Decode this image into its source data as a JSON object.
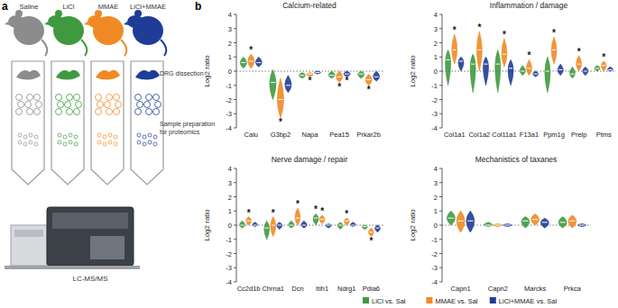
{
  "figure": {
    "panel_labels": [
      "a",
      "b"
    ]
  },
  "diagram": {
    "groups": [
      {
        "label": "Saline",
        "color": "#8c8c8c"
      },
      {
        "label": "LiCl",
        "color": "#3f9a3f"
      },
      {
        "label": "MMAE",
        "color": "#f08a24"
      },
      {
        "label": "LiCl+MMAE",
        "color": "#1f3d96"
      }
    ],
    "dissection": "DRG dissection",
    "sample_prep": [
      "Sample preparation",
      "for proteomics"
    ],
    "instrument": "LC-MS/MS"
  },
  "chart_data": [
    {
      "type": "violin",
      "title": "Calcium-related",
      "y_label": "Log2 ratio",
      "categories": [
        "Calu",
        "G3bp2",
        "Napa",
        "Pea15",
        "Prkar2b"
      ],
      "ylim": [
        -4,
        4
      ],
      "yticks": [
        -4,
        -3,
        -2,
        -1,
        0,
        1,
        2,
        3,
        4
      ],
      "legend": "bottom",
      "series": [
        {
          "name": "LiCl vs. Sal",
          "color": "#3f9a3f",
          "values": [
            0.6,
            -0.8,
            -0.3,
            -0.3,
            -0.2
          ],
          "min": [
            0.2,
            -2,
            -0.5,
            -0.5,
            -0.5
          ],
          "max": [
            1,
            0.1,
            -0.1,
            0,
            0
          ],
          "significance": [
            null,
            null,
            null,
            null,
            null
          ]
        },
        {
          "name": "MMAE vs. Sal",
          "color": "#f08a24",
          "values": [
            0.7,
            -2,
            -0.2,
            -0.4,
            -0.6
          ],
          "min": [
            0.2,
            -3.3,
            -0.4,
            -0.8,
            -1
          ],
          "max": [
            1.2,
            -0.5,
            -0.1,
            0,
            -0.2
          ],
          "significance": [
            "*",
            "*",
            "*",
            "*",
            "*"
          ]
        },
        {
          "name": "LiCl+MMAE vs. Sal",
          "color": "#1f3d96",
          "values": [
            0.6,
            -1,
            -0.1,
            -0.2,
            -0.4
          ],
          "min": [
            0.3,
            -1.5,
            -0.2,
            -0.4,
            -0.7
          ],
          "max": [
            1,
            -0.3,
            0,
            0,
            0
          ],
          "significance": [
            null,
            null,
            null,
            "*",
            null
          ]
        }
      ]
    },
    {
      "type": "violin",
      "title": "Inflammation / damage",
      "y_label": "Log2 ratio",
      "categories": [
        "Col1a1",
        "Col1a2",
        "Col11a1",
        "F13a1",
        "Ppm1g",
        "Prelp",
        "Ptms"
      ],
      "ylim": [
        -4,
        4
      ],
      "yticks": [
        -4,
        -3,
        -2,
        -1,
        0,
        1,
        2,
        3,
        4
      ],
      "series": [
        {
          "name": "LiCl vs. Sal",
          "color": "#3f9a3f",
          "values": [
            0.8,
            0.5,
            0.5,
            0,
            0,
            -0.2,
            0.2
          ],
          "min": [
            -1,
            -1.5,
            -1.5,
            -0.3,
            -1.5,
            -0.5,
            0
          ],
          "max": [
            1.5,
            1.2,
            1.5,
            0.4,
            1,
            0.3,
            0.4
          ],
          "significance": [
            null,
            null,
            null,
            null,
            null,
            null,
            null
          ]
        },
        {
          "name": "MMAE vs. Sal",
          "color": "#f08a24",
          "values": [
            1.5,
            1.5,
            1.2,
            0.2,
            1.5,
            0.5,
            0.4
          ],
          "min": [
            0.5,
            0,
            0.3,
            -0.3,
            0.5,
            0,
            0
          ],
          "max": [
            2.6,
            2.8,
            2.3,
            0.8,
            2.4,
            1.1,
            0.7
          ],
          "significance": [
            "*",
            "*",
            "*",
            "*",
            "*",
            "*",
            "*"
          ]
        },
        {
          "name": "LiCl+MMAE vs. Sal",
          "color": "#1f3d96",
          "values": [
            0.7,
            0.5,
            0.2,
            -0.2,
            0.1,
            0,
            0.1
          ],
          "min": [
            0,
            -1,
            -1,
            -0.4,
            -0.3,
            -0.3,
            0
          ],
          "max": [
            1,
            1,
            0.8,
            0,
            0.5,
            0.3,
            0.3
          ],
          "significance": [
            null,
            null,
            null,
            null,
            null,
            null,
            null
          ]
        }
      ]
    },
    {
      "type": "violin",
      "title": "Nerve damage / repair",
      "y_label": "Log2 ratio",
      "categories": [
        "Cc2d1b",
        "Chrna1",
        "Dcn",
        "Itih1",
        "Ndrg1",
        "Pdia6"
      ],
      "ylim": [
        -4,
        4
      ],
      "yticks": [
        -4,
        -3,
        -2,
        -1,
        0,
        1,
        2,
        3,
        4
      ],
      "series": [
        {
          "name": "LiCl vs. Sal",
          "color": "#3f9a3f",
          "values": [
            0,
            -0.2,
            0,
            0.5,
            0,
            -0.1
          ],
          "min": [
            -0.2,
            -1,
            -0.2,
            0,
            -0.3,
            -0.3
          ],
          "max": [
            0.3,
            0.3,
            0.3,
            0.8,
            0.2,
            0
          ],
          "significance": [
            null,
            null,
            null,
            "*",
            null,
            null
          ]
        },
        {
          "name": "MMAE vs. Sal",
          "color": "#f08a24",
          "values": [
            0.3,
            0,
            0.5,
            0.4,
            0.3,
            -0.5
          ],
          "min": [
            0,
            -0.8,
            0,
            0.1,
            0,
            -0.8
          ],
          "max": [
            0.6,
            0.6,
            1.2,
            0.7,
            0.5,
            -0.2
          ],
          "significance": [
            "*",
            "*",
            "*",
            "*",
            "*",
            "*"
          ]
        },
        {
          "name": "LiCl+MMAE vs. Sal",
          "color": "#1f3d96",
          "values": [
            0,
            0,
            0,
            0,
            0,
            -0.2
          ],
          "min": [
            -0.1,
            -0.3,
            -0.2,
            -0.2,
            -0.1,
            -0.5
          ],
          "max": [
            0.2,
            0.2,
            0.3,
            0.1,
            0.2,
            0
          ],
          "significance": [
            null,
            null,
            null,
            null,
            null,
            null
          ]
        }
      ]
    },
    {
      "type": "violin",
      "title": "Mechanistics of taxanes",
      "y_label": "Log2 ratio",
      "categories": [
        "Capn1",
        "Capn2",
        "Marcks",
        "Prkca"
      ],
      "ylim": [
        -4,
        4
      ],
      "yticks": [
        -4,
        -3,
        -2,
        -1,
        0,
        1,
        2,
        3,
        4
      ],
      "series": [
        {
          "name": "LiCl vs. Sal",
          "color": "#3f9a3f",
          "values": [
            0.5,
            0,
            0.3,
            0.2
          ],
          "min": [
            0,
            -0.1,
            -0.2,
            -0.2
          ],
          "max": [
            1,
            0.2,
            0.6,
            0.6
          ],
          "significance": [
            null,
            null,
            null,
            null
          ]
        },
        {
          "name": "MMAE vs. Sal",
          "color": "#f08a24",
          "values": [
            0.3,
            0,
            0.4,
            0.3
          ],
          "min": [
            -0.5,
            -0.1,
            0,
            -0.2
          ],
          "max": [
            1,
            0.1,
            0.8,
            0.7
          ],
          "significance": [
            null,
            null,
            null,
            null
          ]
        },
        {
          "name": "LiCl+MMAE vs. Sal",
          "color": "#1f3d96",
          "values": [
            0.3,
            0,
            0.2,
            0
          ],
          "min": [
            -0.5,
            -0.1,
            -0.2,
            -0.1
          ],
          "max": [
            1,
            0.1,
            0.5,
            0.1
          ],
          "significance": [
            null,
            null,
            null,
            null
          ]
        }
      ]
    }
  ]
}
